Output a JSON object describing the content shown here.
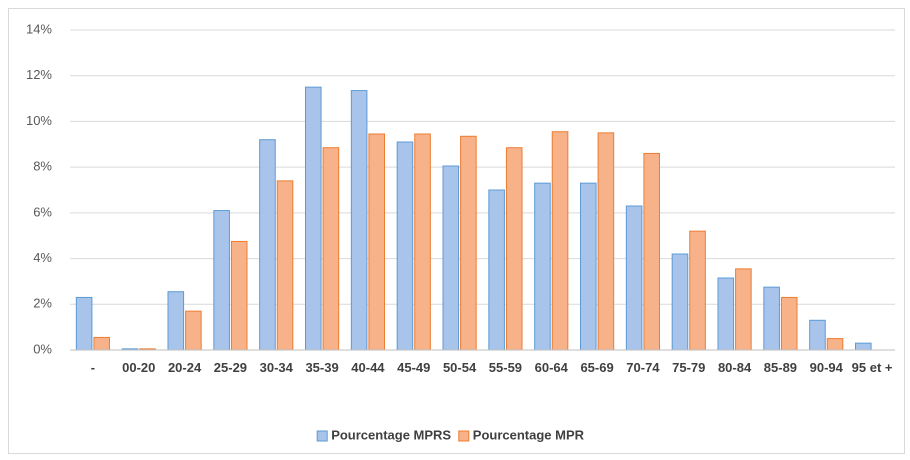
{
  "chart_data": {
    "type": "bar",
    "categories": [
      "-",
      "00-20",
      "20-24",
      "25-29",
      "30-34",
      "35-39",
      "40-44",
      "45-49",
      "50-54",
      "55-59",
      "60-64",
      "65-69",
      "70-74",
      "75-79",
      "80-84",
      "85-89",
      "90-94",
      "95 et +"
    ],
    "series": [
      {
        "name": "Pourcentage MPRS",
        "color": "#a9c4eb",
        "values": [
          2.3,
          0.05,
          2.55,
          6.1,
          9.2,
          11.5,
          11.35,
          9.1,
          8.05,
          7.0,
          7.3,
          7.3,
          6.3,
          4.2,
          3.15,
          2.75,
          1.3,
          0.3
        ]
      },
      {
        "name": "Pourcentage MPR",
        "color": "#f8b28a",
        "values": [
          0.55,
          0.05,
          1.7,
          4.75,
          7.4,
          8.85,
          9.45,
          9.45,
          9.35,
          8.85,
          9.55,
          9.5,
          8.6,
          5.2,
          3.55,
          2.3,
          0.5,
          0
        ]
      }
    ],
    "ylim": [
      0,
      14
    ],
    "yticks": [
      {
        "value": 0,
        "label": "0%"
      },
      {
        "value": 2,
        "label": "2%"
      },
      {
        "value": 4,
        "label": "4%"
      },
      {
        "value": 6,
        "label": "6%"
      },
      {
        "value": 8,
        "label": "8%"
      },
      {
        "value": 10,
        "label": "10%"
      },
      {
        "value": 12,
        "label": "12%"
      },
      {
        "value": 14,
        "label": "14%"
      }
    ],
    "grid": true,
    "legend": "bottom"
  }
}
